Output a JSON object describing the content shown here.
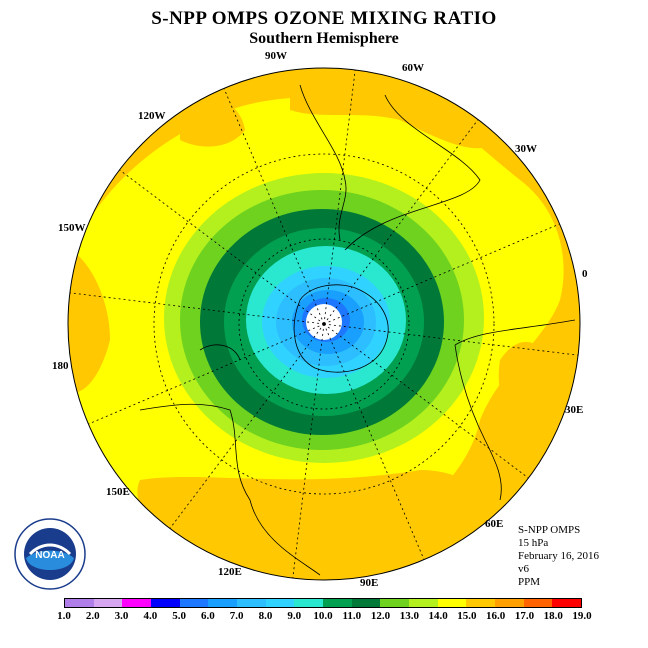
{
  "title": "S-NPP OMPS OZONE MIXING RATIO",
  "subtitle": "Southern Hemisphere",
  "longitude_labels": [
    "90W",
    "60W",
    "30W",
    "0",
    "30E",
    "60E",
    "90E",
    "120E",
    "150E",
    "180",
    "150W",
    "120W"
  ],
  "info": {
    "instrument": "S-NPP OMPS",
    "level": "15 hPa",
    "date": "February 16, 2016",
    "version": "v6",
    "units": "PPM"
  },
  "logo_text": "NOAA",
  "legend": {
    "ticks": [
      "1.0",
      "2.0",
      "3.0",
      "4.0",
      "5.0",
      "6.0",
      "7.0",
      "8.0",
      "9.0",
      "10.0",
      "11.0",
      "12.0",
      "13.0",
      "14.0",
      "15.0",
      "16.0",
      "17.0",
      "18.0",
      "19.0"
    ],
    "colors": [
      "#b07ee8",
      "#d7a6f0",
      "#ff00ff",
      "#0000ff",
      "#1e78ff",
      "#19a0ff",
      "#2dbeff",
      "#30d2ff",
      "#2ae8d0",
      "#00a050",
      "#007838",
      "#6ed21e",
      "#b4f01e",
      "#ffff00",
      "#ffc800",
      "#ffa000",
      "#ff6400",
      "#ff0000",
      "#8c5a3c"
    ]
  },
  "map_colors": {
    "ocean_background": "#ffc800",
    "yellow": "#ffff00",
    "pole_hole": "#ffffff"
  }
}
